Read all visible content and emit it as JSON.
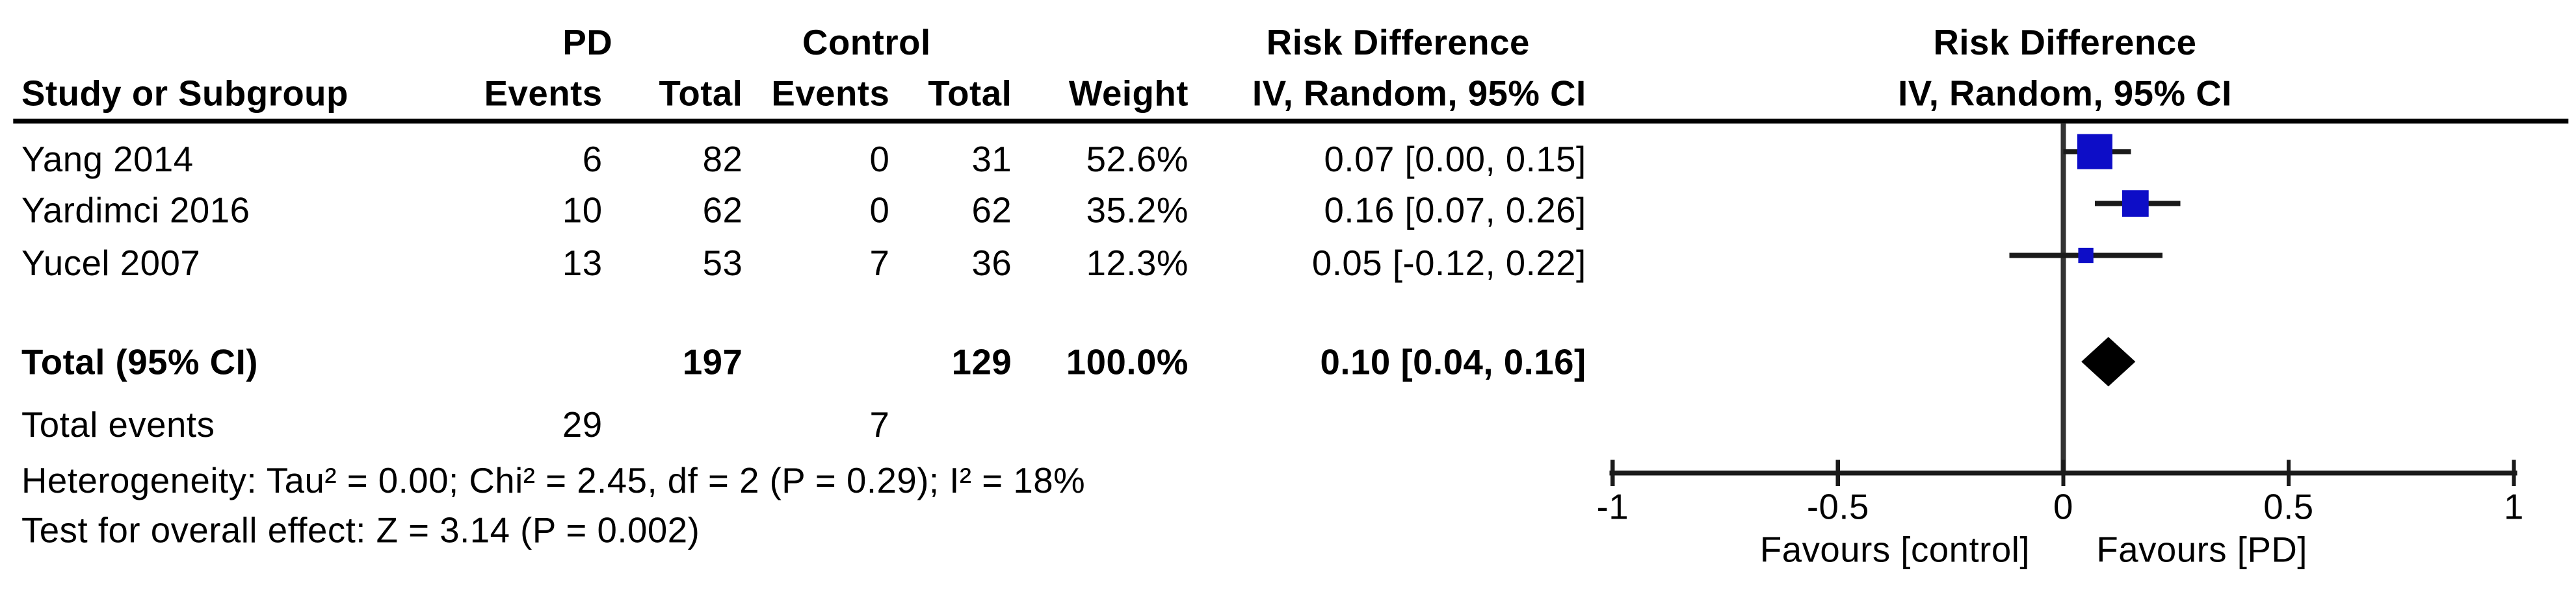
{
  "table": {
    "group1_label": "PD",
    "group2_label": "Control",
    "effect_header_line1": "Risk Difference",
    "effect_header_line2": "IV, Random, 95% CI",
    "plot_header_line1": "Risk Difference",
    "plot_header_line2": "IV, Random, 95% CI",
    "columns": [
      "Study or Subgroup",
      "Events",
      "Total",
      "Events",
      "Total",
      "Weight",
      "IV, Random, 95% CI"
    ],
    "rows": [
      {
        "study": "Yang 2014",
        "events1": "6",
        "total1": "82",
        "events2": "0",
        "total2": "31",
        "weight": "52.6%",
        "ci": "0.07 [0.00, 0.15]"
      },
      {
        "study": "Yardimci 2016",
        "events1": "10",
        "total1": "62",
        "events2": "0",
        "total2": "62",
        "weight": "35.2%",
        "ci": "0.16 [0.07, 0.26]"
      },
      {
        "study": "Yucel 2007",
        "events1": "13",
        "total1": "53",
        "events2": "7",
        "total2": "36",
        "weight": "12.3%",
        "ci": "0.05 [-0.12, 0.22]"
      }
    ],
    "total_row": {
      "label": "Total (95% CI)",
      "total1": "197",
      "total2": "129",
      "weight": "100.0%",
      "ci": "0.10 [0.04, 0.16]"
    },
    "total_events": {
      "label": "Total events",
      "events1": "29",
      "events2": "7"
    },
    "heterogeneity": "Heterogeneity: Tau² = 0.00; Chi² = 2.45, df = 2 (P = 0.29); I² = 18%",
    "overall_effect": "Test for overall effect: Z = 3.14 (P = 0.002)"
  },
  "chart_data": {
    "type": "forest",
    "effect_measure": "Risk Difference",
    "model": "IV, Random, 95% CI",
    "studies": [
      {
        "name": "Yang 2014",
        "estimate": 0.07,
        "ci_low": 0.0,
        "ci_high": 0.15,
        "weight_pct": 52.6
      },
      {
        "name": "Yardimci 2016",
        "estimate": 0.16,
        "ci_low": 0.07,
        "ci_high": 0.26,
        "weight_pct": 35.2
      },
      {
        "name": "Yucel 2007",
        "estimate": 0.05,
        "ci_low": -0.12,
        "ci_high": 0.22,
        "weight_pct": 12.3
      }
    ],
    "total": {
      "label": "Total (95% CI)",
      "estimate": 0.1,
      "ci_low": 0.04,
      "ci_high": 0.16,
      "weight_pct": 100.0
    },
    "axis": {
      "min": -1,
      "max": 1,
      "ticks": [
        -1,
        -0.5,
        0,
        0.5,
        1
      ],
      "tick_labels": [
        "-1",
        "-0.5",
        "0",
        "0.5",
        "1"
      ],
      "left_label": "Favours [control]",
      "right_label": "Favours [PD]"
    },
    "colors": {
      "square": "#0d0dc7",
      "diamond": "#000000",
      "ci_line": "#1a1a1a",
      "axis_line": "#1a1a1a",
      "zero_line": "#333333"
    }
  }
}
